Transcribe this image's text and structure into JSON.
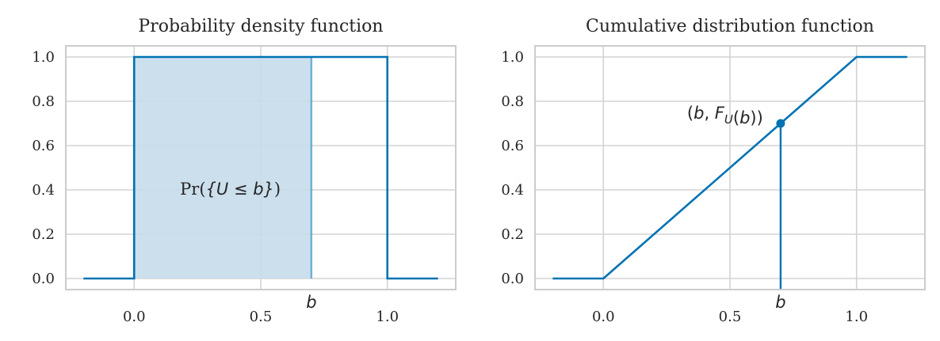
{
  "chart_data": [
    {
      "type": "line",
      "title": "Probability density function",
      "xlim": [
        -0.27,
        1.27
      ],
      "ylim": [
        -0.05,
        1.05
      ],
      "xticks": [
        0.0,
        0.5,
        1.0
      ],
      "xtick_labels": [
        "0.0",
        "0.5",
        "1.0"
      ],
      "yticks": [
        0.0,
        0.2,
        0.4,
        0.6,
        0.8,
        1.0
      ],
      "ytick_labels": [
        "0.0",
        "0.2",
        "0.4",
        "0.6",
        "0.8",
        "1.0"
      ],
      "grid": true,
      "color": "#0072b2",
      "shade_color": "#c6dcea",
      "series": [
        {
          "x": [
            -0.2,
            0.0,
            0.0,
            1.0,
            1.0,
            1.2
          ],
          "y": [
            0,
            0,
            1,
            1,
            0,
            0
          ]
        }
      ],
      "marker": {
        "x": 0.7,
        "label": "b"
      },
      "shaded_region": {
        "x": [
          0.0,
          0.7
        ],
        "y": [
          0,
          1
        ]
      },
      "annotation": {
        "x": 0.38,
        "y": 0.4,
        "text_prefix": "Pr(",
        "text_math": "{U ≤ b}",
        "text_suffix": ")"
      }
    },
    {
      "type": "line",
      "title": "Cumulative distribution function",
      "xlim": [
        -0.27,
        1.27
      ],
      "ylim": [
        -0.05,
        1.05
      ],
      "xticks": [
        0.0,
        0.5,
        1.0
      ],
      "xtick_labels": [
        "0.0",
        "0.5",
        "1.0"
      ],
      "yticks": [
        0.0,
        0.2,
        0.4,
        0.6,
        0.8,
        1.0
      ],
      "ytick_labels": [
        "0.0",
        "0.2",
        "0.4",
        "0.6",
        "0.8",
        "1.0"
      ],
      "grid": true,
      "color": "#0072b2",
      "series": [
        {
          "x": [
            -0.2,
            0.0,
            1.0,
            1.2
          ],
          "y": [
            0,
            0,
            1,
            1
          ]
        }
      ],
      "marker": {
        "x": 0.7,
        "label": "b"
      },
      "point": {
        "x": 0.7,
        "y": 0.7,
        "label": "(b, F_U(b))"
      }
    }
  ]
}
